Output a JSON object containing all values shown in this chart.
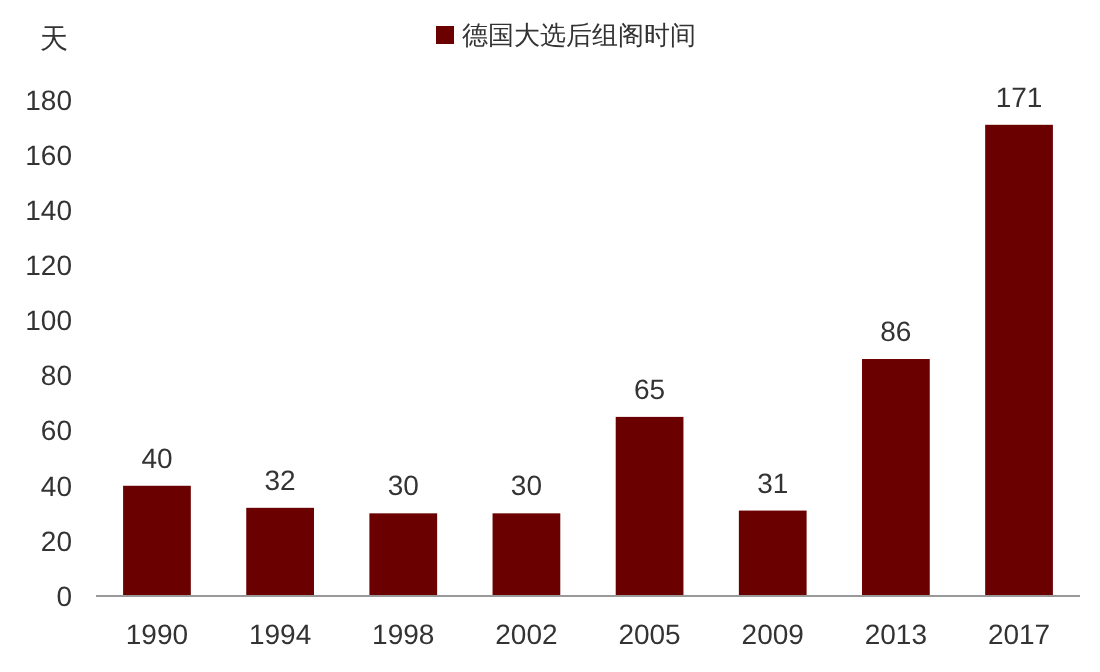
{
  "chart_data": {
    "type": "bar",
    "ylabel": "天",
    "categories": [
      "1990",
      "1994",
      "1998",
      "2002",
      "2005",
      "2009",
      "2013",
      "2017"
    ],
    "series": [
      {
        "name": "德国大选后组阁时间",
        "color": "#6b0000",
        "values": [
          40,
          32,
          30,
          30,
          65,
          31,
          86,
          171
        ]
      }
    ],
    "ylim": [
      0,
      180
    ],
    "yticks": [
      0,
      20,
      40,
      60,
      80,
      100,
      120,
      140,
      160,
      180
    ],
    "data_labels": true,
    "legend": "top",
    "grid": false
  }
}
